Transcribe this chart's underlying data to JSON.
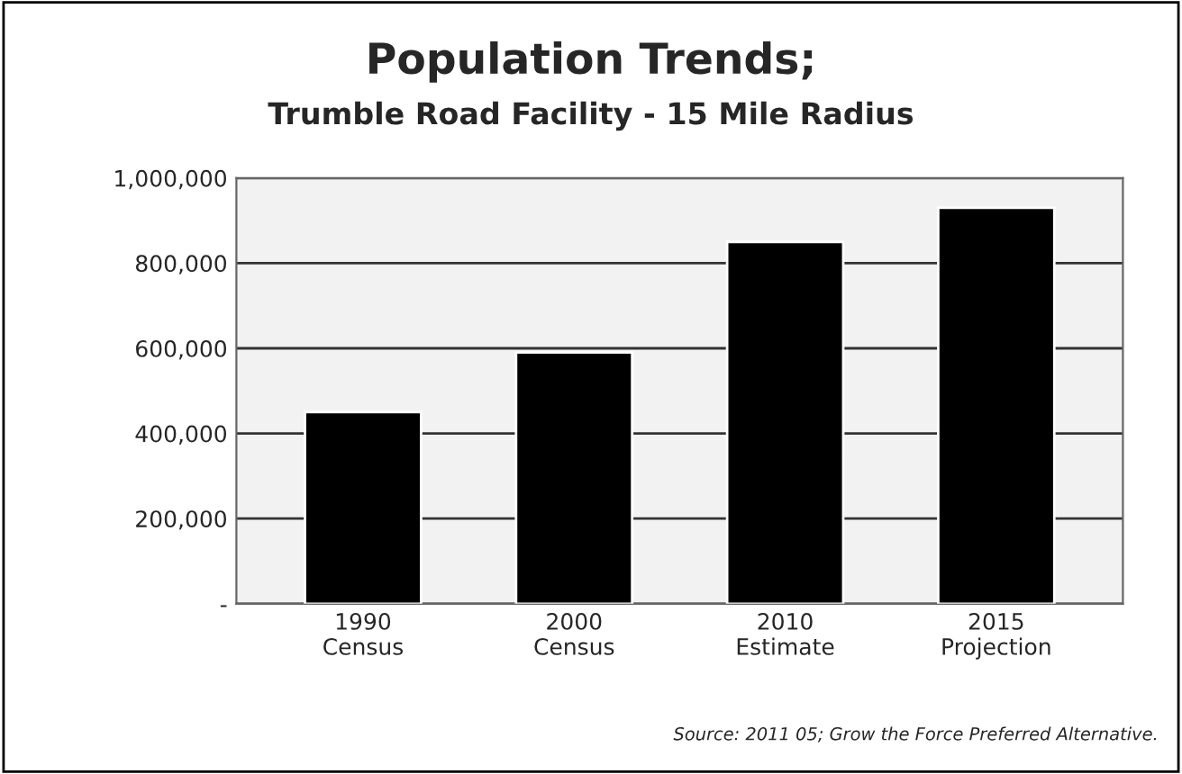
{
  "chart_data": {
    "type": "bar",
    "title": "Population Trends;",
    "subtitle": "Trumble Road Facility - 15 Mile Radius",
    "categories": [
      "1990\nCensus",
      "2000\nCensus",
      "2010\nEstimate",
      "2015\nProjection"
    ],
    "values": [
      450000,
      590000,
      850000,
      930000
    ],
    "color": "#000000",
    "ylim": [
      0,
      1000000
    ],
    "yticks": [
      {
        "value": 0,
        "label": "-"
      },
      {
        "value": 200000,
        "label": "200,000"
      },
      {
        "value": 400000,
        "label": "400,000"
      },
      {
        "value": 600000,
        "label": "600,000"
      },
      {
        "value": 800000,
        "label": "800,000"
      },
      {
        "value": 1000000,
        "label": "1,000,000"
      }
    ],
    "grid": "y",
    "annotations": [
      "Source: 2011 05; Grow the Force Preferred Alternative."
    ]
  }
}
